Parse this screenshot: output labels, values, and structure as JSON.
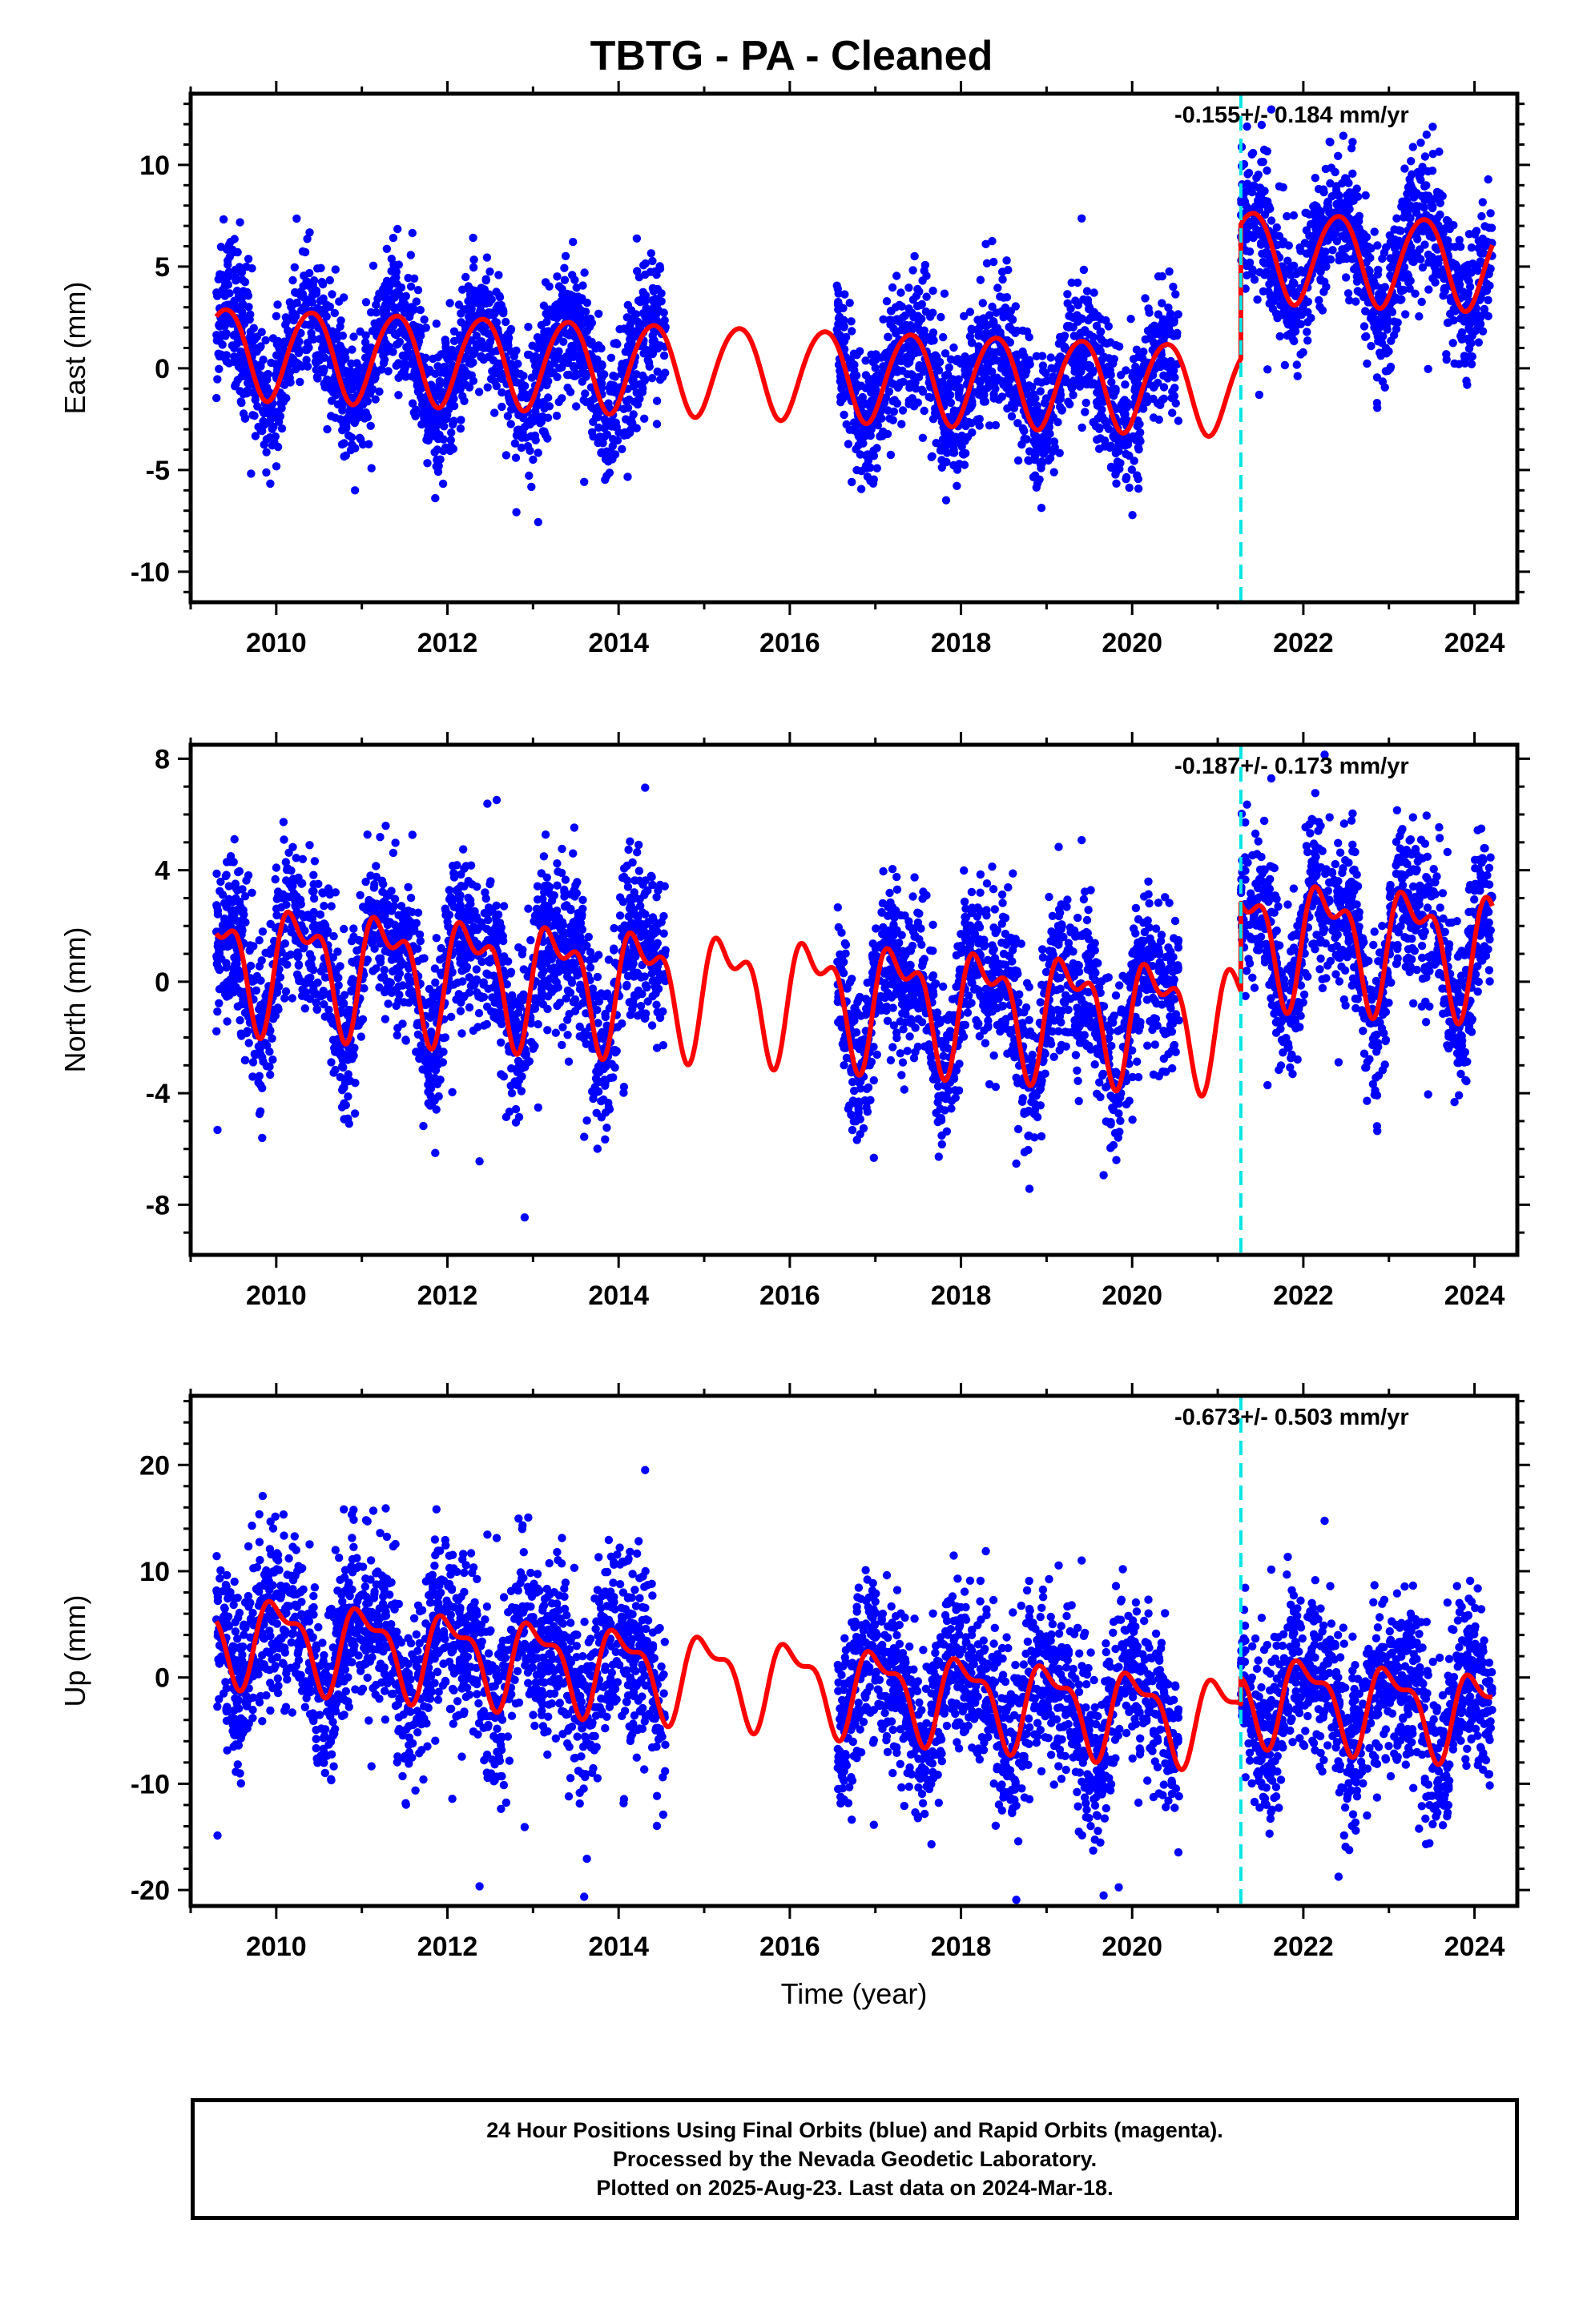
{
  "title": "TBTG  - PA - Cleaned",
  "colors": {
    "points": "#0000ff",
    "model": "#ff0000",
    "break": "#00e5e5",
    "frame": "#000000"
  },
  "chart_data": [
    {
      "type": "scatter",
      "ylabel": "East (mm)",
      "xlabel": "",
      "xlim": [
        2009.0,
        2024.5
      ],
      "ylim": [
        -11.5,
        13.5
      ],
      "yticks": [
        -10,
        -5,
        0,
        5,
        10
      ],
      "yminor": 1,
      "xticks": [
        2010,
        2012,
        2014,
        2016,
        2018,
        2020,
        2022,
        2024
      ],
      "rate_label": "-0.155+/- 0.184 mm/yr",
      "break_x": 2021.27,
      "data_segments": [
        [
          2009.3,
          2014.55
        ],
        [
          2016.55,
          2020.55
        ],
        [
          2021.27,
          2024.21
        ]
      ],
      "model": {
        "offset_before": -0.3,
        "offset_after": 6.3,
        "slope": -0.155,
        "t0": 2016.8,
        "annual_sin": 1.3,
        "annual_cos": -1.8,
        "semi_sin": 0.2,
        "semi_cos": 0.0
      },
      "scatter_sd": 1.6,
      "point_count": 4300
    },
    {
      "type": "scatter",
      "ylabel": "North (mm)",
      "xlabel": "",
      "xlim": [
        2009.0,
        2024.5
      ],
      "ylim": [
        -9.8,
        8.5
      ],
      "yticks": [
        -8,
        -4,
        0,
        4,
        8
      ],
      "yminor": 1,
      "xticks": [
        2010,
        2012,
        2014,
        2016,
        2018,
        2020,
        2022,
        2024
      ],
      "rate_label": "-0.187+/- 0.173 mm/yr",
      "break_x": 2021.27,
      "data_segments": [
        [
          2009.3,
          2014.55
        ],
        [
          2016.55,
          2020.55
        ],
        [
          2021.27,
          2024.21
        ]
      ],
      "model": {
        "offset_before": -0.55,
        "offset_after": 2.6,
        "slope": -0.187,
        "t0": 2016.8,
        "annual_sin": 1.8,
        "annual_cos": -0.4,
        "semi_sin": 0.8,
        "semi_cos": 0.6
      },
      "scatter_sd": 1.4,
      "point_count": 4300
    },
    {
      "type": "scatter",
      "ylabel": "Up (mm)",
      "xlabel": "Time (year)",
      "xlim": [
        2009.0,
        2024.5
      ],
      "ylim": [
        -21.5,
        26.5
      ],
      "yticks": [
        -20,
        -10,
        0,
        10,
        20
      ],
      "yminor": 2,
      "xticks": [
        2010,
        2012,
        2014,
        2016,
        2018,
        2020,
        2022,
        2024
      ],
      "rate_label": "-0.673+/- 0.503 mm/yr",
      "break_x": 2021.27,
      "data_segments": [
        [
          2009.3,
          2014.55
        ],
        [
          2016.55,
          2020.55
        ],
        [
          2021.27,
          2024.21
        ]
      ],
      "model": {
        "offset_before": -1.0,
        "offset_after": 1.5,
        "slope": -0.673,
        "t0": 2016.8,
        "annual_sin": 1.0,
        "annual_cos": 3.5,
        "semi_sin": -1.5,
        "semi_cos": -0.6
      },
      "scatter_sd": 4.0,
      "point_count": 4300
    }
  ],
  "footer": {
    "line1": "24 Hour Positions Using Final Orbits (blue) and Rapid Orbits (magenta).",
    "line2": "Processed by the Nevada Geodetic Laboratory.",
    "line3": "Plotted on 2025-Aug-23. Last data on 2024-Mar-18."
  }
}
